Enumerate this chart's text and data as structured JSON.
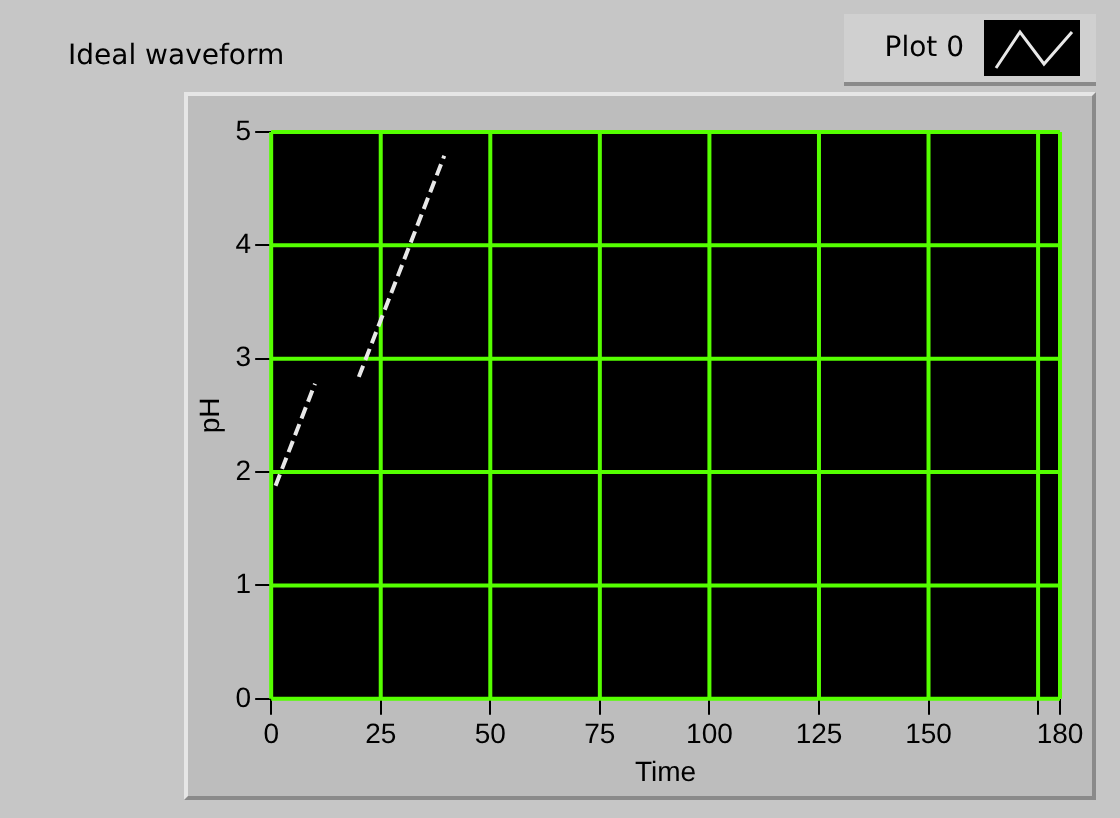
{
  "chart_data": {
    "type": "line",
    "title": "Ideal waveform",
    "xlabel": "Time",
    "ylabel": "pH",
    "series": [
      {
        "name": "Plot 0",
        "color": "#e8e8e8",
        "x": [
          1,
          10,
          15,
          20,
          39.5
        ],
        "values": [
          1.88,
          2.78,
          null,
          2.84,
          4.79
        ]
      }
    ],
    "xlim": [
      0,
      180
    ],
    "xticks": [
      0,
      25,
      50,
      75,
      100,
      125,
      150,
      {
        "value": 175,
        "label": null
      },
      180
    ],
    "ylim": [
      0,
      5
    ],
    "yticks": [
      0,
      1,
      2,
      3,
      4,
      5
    ],
    "grid": true,
    "legend": "top right",
    "line_style": "dashed",
    "marker": "none"
  }
}
